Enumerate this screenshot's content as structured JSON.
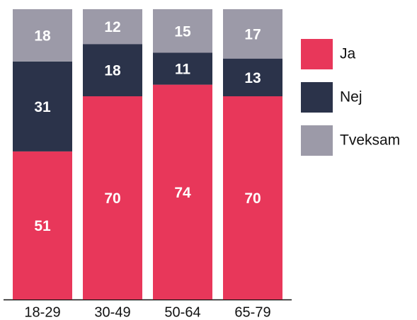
{
  "chart_data": {
    "type": "bar",
    "stacked": true,
    "categories": [
      "18-29",
      "30-49",
      "50-64",
      "65-79"
    ],
    "series": [
      {
        "name": "Ja",
        "color": "#e8375a",
        "values": [
          51,
          70,
          74,
          70
        ]
      },
      {
        "name": "Nej",
        "color": "#2b334a",
        "values": [
          31,
          18,
          11,
          13
        ]
      },
      {
        "name": "Tveksam",
        "color": "#9c9aa8",
        "values": [
          18,
          12,
          15,
          17
        ]
      }
    ],
    "ylim": [
      0,
      100
    ],
    "legend": "right",
    "data_labels": true
  }
}
